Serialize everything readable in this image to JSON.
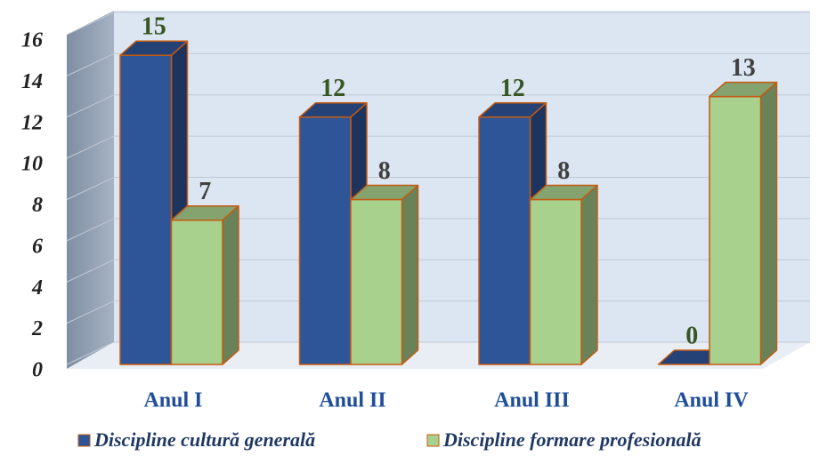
{
  "chart_data": {
    "type": "bar3d",
    "categories": [
      "Anul  I",
      "Anul  II",
      "Anul III",
      "Anul IV"
    ],
    "series": [
      {
        "name": "Discipline cultură generală",
        "color": "#2e5597",
        "values": [
          15,
          12,
          12,
          0
        ]
      },
      {
        "name": "Discipline formare profesională",
        "color": "#a9d18e",
        "values": [
          7,
          8,
          8,
          13
        ]
      }
    ],
    "ylim": [
      0,
      16
    ],
    "yticks": [
      0,
      2,
      4,
      6,
      8,
      10,
      12,
      14,
      16
    ],
    "grid": true,
    "legend": "bottom"
  }
}
